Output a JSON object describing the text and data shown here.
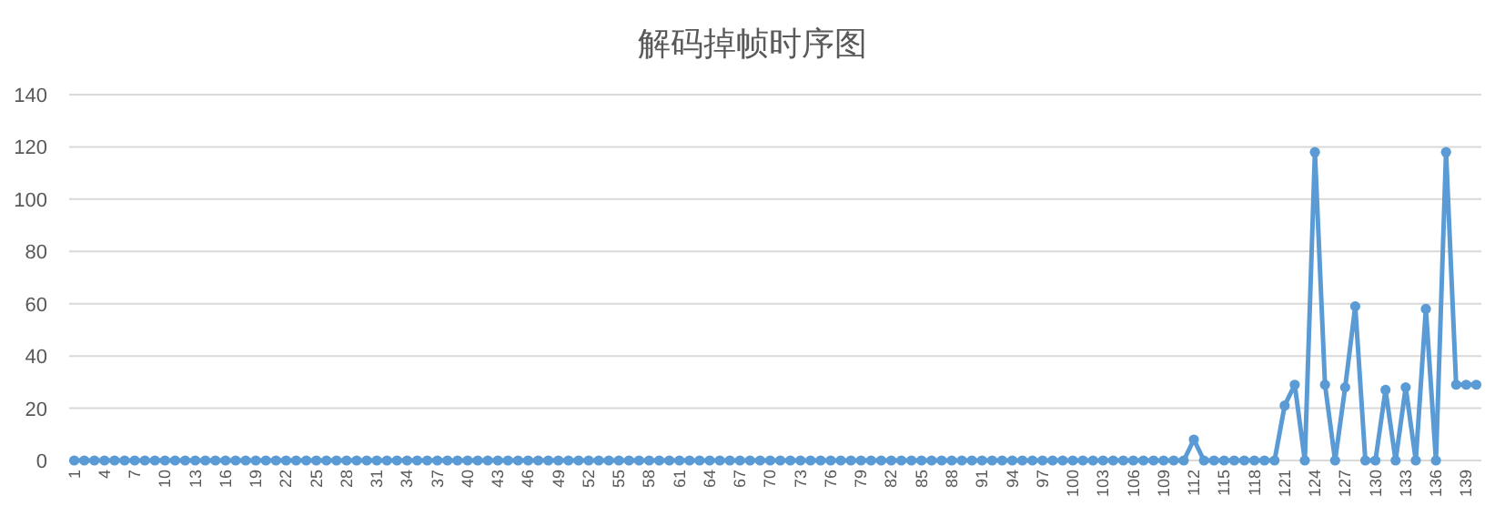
{
  "chart_data": {
    "type": "line",
    "title": "解码掉帧时序图",
    "categories": [
      "1",
      null,
      null,
      "4",
      null,
      null,
      "7",
      null,
      null,
      "10",
      null,
      null,
      "13",
      null,
      null,
      "16",
      null,
      null,
      "19",
      null,
      null,
      "22",
      null,
      null,
      "25",
      null,
      null,
      "28",
      null,
      null,
      "31",
      null,
      null,
      "34",
      null,
      null,
      "37",
      null,
      null,
      "40",
      null,
      null,
      "43",
      null,
      null,
      "46",
      null,
      null,
      "49",
      null,
      null,
      "52",
      null,
      null,
      "55",
      null,
      null,
      "58",
      null,
      null,
      "61",
      null,
      null,
      "64",
      null,
      null,
      "67",
      null,
      null,
      "70",
      null,
      null,
      "73",
      null,
      null,
      "76",
      null,
      null,
      "79",
      null,
      null,
      "82",
      null,
      null,
      "85",
      null,
      null,
      "88",
      null,
      null,
      "91",
      null,
      null,
      "94",
      null,
      null,
      "97",
      null,
      null,
      "100",
      null,
      null,
      "103",
      null,
      null,
      "106",
      null,
      null,
      "109",
      null,
      null,
      "112",
      null,
      null,
      "115",
      null,
      null,
      "118",
      null,
      null,
      "121",
      null,
      null,
      "124",
      null,
      null,
      "127",
      null,
      null,
      "130",
      null,
      null,
      "133",
      null,
      null,
      "136",
      null,
      null,
      "139",
      null
    ],
    "values": [
      0,
      0,
      0,
      0,
      0,
      0,
      0,
      0,
      0,
      0,
      0,
      0,
      0,
      0,
      0,
      0,
      0,
      0,
      0,
      0,
      0,
      0,
      0,
      0,
      0,
      0,
      0,
      0,
      0,
      0,
      0,
      0,
      0,
      0,
      0,
      0,
      0,
      0,
      0,
      0,
      0,
      0,
      0,
      0,
      0,
      0,
      0,
      0,
      0,
      0,
      0,
      0,
      0,
      0,
      0,
      0,
      0,
      0,
      0,
      0,
      0,
      0,
      0,
      0,
      0,
      0,
      0,
      0,
      0,
      0,
      0,
      0,
      0,
      0,
      0,
      0,
      0,
      0,
      0,
      0,
      0,
      0,
      0,
      0,
      0,
      0,
      0,
      0,
      0,
      0,
      0,
      0,
      0,
      0,
      0,
      0,
      0,
      0,
      0,
      0,
      0,
      0,
      0,
      0,
      0,
      0,
      0,
      0,
      0,
      0,
      0,
      8,
      0,
      0,
      0,
      0,
      0,
      0,
      0,
      0,
      21,
      29,
      0,
      118,
      29,
      0,
      28,
      59,
      0,
      0,
      27,
      0,
      28,
      0,
      58,
      0,
      118,
      29,
      29,
      29
    ],
    "color": "#5b9bd5",
    "ylim": [
      0,
      140
    ],
    "yticks": [
      0,
      20,
      40,
      60,
      80,
      100,
      120,
      140
    ],
    "grid": "y",
    "marker": "circle"
  }
}
